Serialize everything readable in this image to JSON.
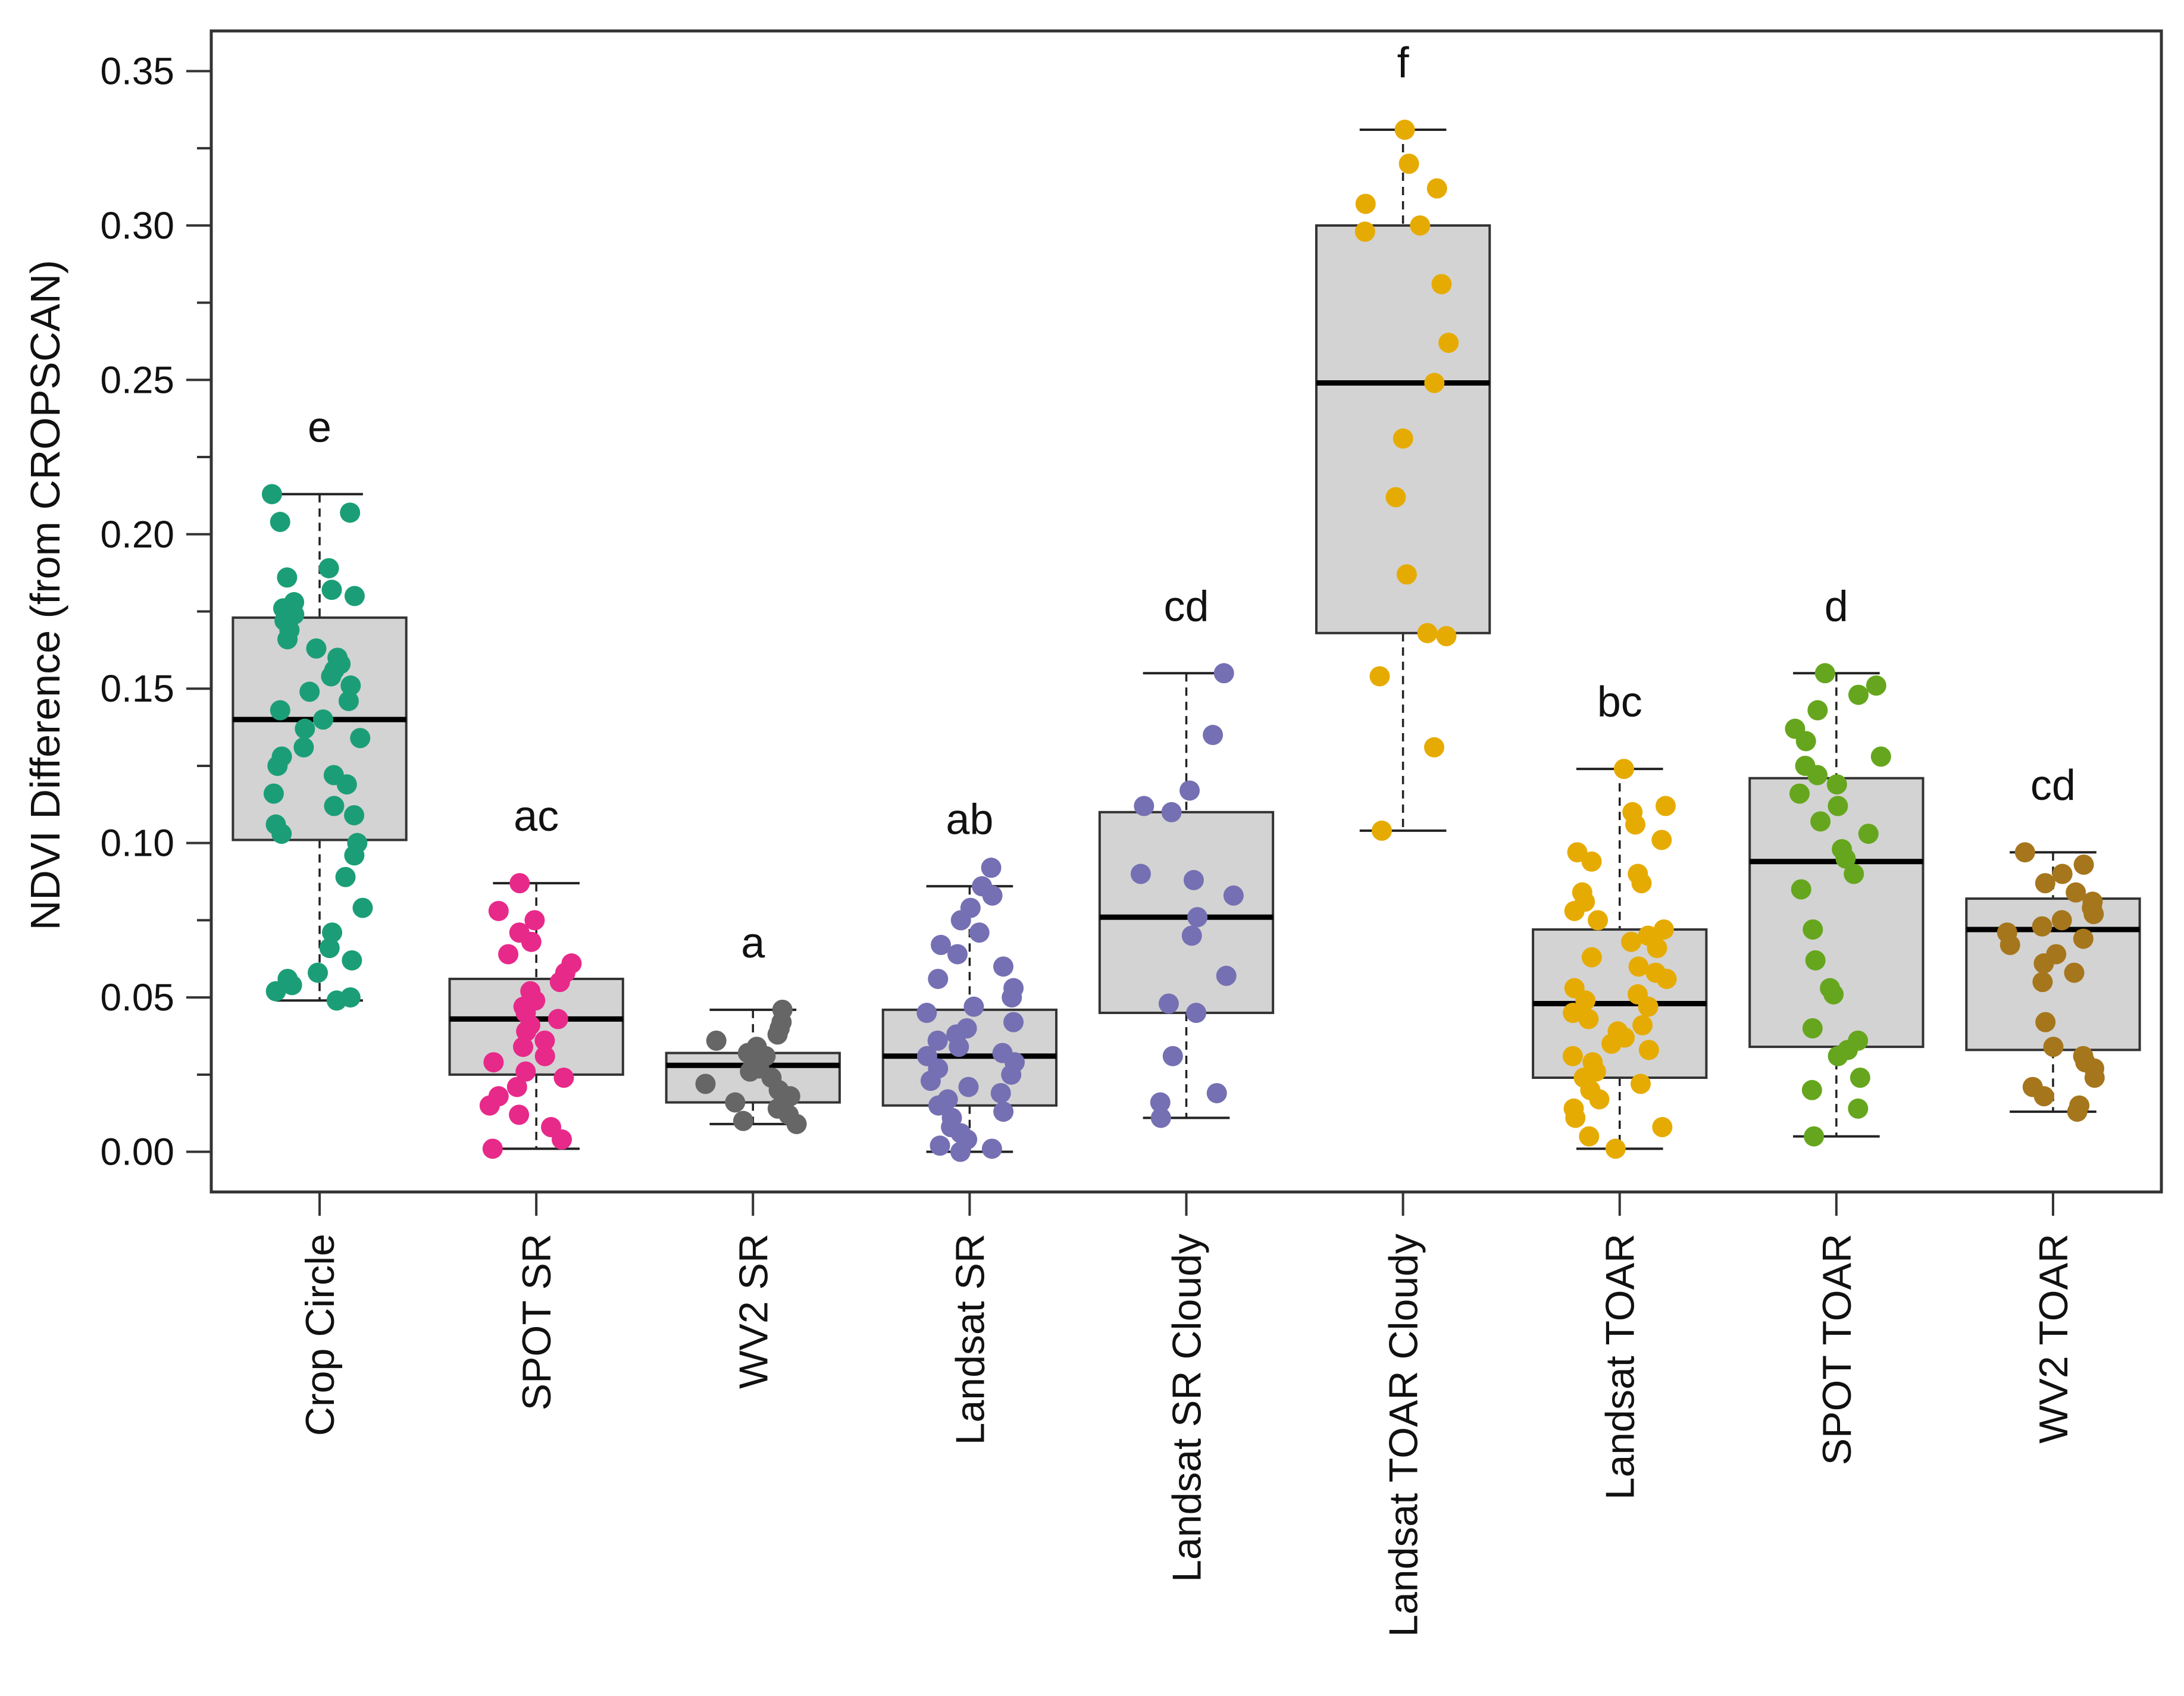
{
  "chart_data": {
    "type": "box",
    "title": "",
    "xlabel": "",
    "ylabel": "NDVI Difference (from CROPSCAN)",
    "ylim": [
      -0.013,
      0.363
    ],
    "yticks": [
      0.0,
      0.05,
      0.1,
      0.15,
      0.2,
      0.25,
      0.3,
      0.35
    ],
    "ytick_labels": [
      "0.00",
      "0.05",
      "0.10",
      "0.15",
      "0.20",
      "0.25",
      "0.30",
      "0.35"
    ],
    "box_fill": "#d3d3d3",
    "groups": [
      {
        "name": "Crop Circle",
        "letter": "e",
        "color": "#1b9e77",
        "whisker_low": 0.049,
        "q1": 0.101,
        "median": 0.14,
        "q3": 0.173,
        "whisker_high": 0.213,
        "points": [
          0.213,
          0.207,
          0.204,
          0.189,
          0.186,
          0.182,
          0.18,
          0.178,
          0.176,
          0.174,
          0.172,
          0.169,
          0.166,
          0.163,
          0.16,
          0.158,
          0.156,
          0.154,
          0.151,
          0.149,
          0.146,
          0.143,
          0.14,
          0.137,
          0.134,
          0.131,
          0.128,
          0.125,
          0.122,
          0.119,
          0.116,
          0.112,
          0.109,
          0.106,
          0.103,
          0.1,
          0.096,
          0.089,
          0.079,
          0.071,
          0.066,
          0.062,
          0.058,
          0.056,
          0.054,
          0.052,
          0.05,
          0.049
        ]
      },
      {
        "name": "SPOT SR",
        "letter": "ac",
        "color": "#e7298a",
        "whisker_low": 0.001,
        "q1": 0.025,
        "median": 0.043,
        "q3": 0.056,
        "whisker_high": 0.087,
        "points": [
          0.087,
          0.078,
          0.075,
          0.071,
          0.068,
          0.064,
          0.061,
          0.058,
          0.055,
          0.052,
          0.049,
          0.047,
          0.045,
          0.043,
          0.041,
          0.039,
          0.036,
          0.034,
          0.031,
          0.029,
          0.026,
          0.024,
          0.021,
          0.018,
          0.015,
          0.012,
          0.008,
          0.004,
          0.001
        ]
      },
      {
        "name": "WV2 SR",
        "letter": "a",
        "color": "#666666",
        "whisker_low": 0.009,
        "q1": 0.016,
        "median": 0.028,
        "q3": 0.032,
        "whisker_high": 0.046,
        "points": [
          0.046,
          0.042,
          0.04,
          0.038,
          0.036,
          0.034,
          0.032,
          0.031,
          0.029,
          0.028,
          0.027,
          0.026,
          0.024,
          0.022,
          0.02,
          0.018,
          0.016,
          0.014,
          0.012,
          0.01,
          0.009
        ]
      },
      {
        "name": "Landsat SR",
        "letter": "ab",
        "color": "#7570b3",
        "whisker_low": 0.0,
        "q1": 0.015,
        "median": 0.031,
        "q3": 0.046,
        "whisker_high": 0.086,
        "points": [
          0.092,
          0.086,
          0.083,
          0.079,
          0.075,
          0.071,
          0.067,
          0.064,
          0.06,
          0.056,
          0.053,
          0.05,
          0.047,
          0.045,
          0.042,
          0.04,
          0.038,
          0.036,
          0.034,
          0.032,
          0.031,
          0.029,
          0.027,
          0.025,
          0.023,
          0.021,
          0.019,
          0.017,
          0.015,
          0.013,
          0.011,
          0.008,
          0.006,
          0.004,
          0.002,
          0.001,
          0.0
        ]
      },
      {
        "name": "Landsat SR Cloudy",
        "letter": "cd",
        "color": "#7570b3",
        "whisker_low": 0.011,
        "q1": 0.045,
        "median": 0.076,
        "q3": 0.11,
        "whisker_high": 0.155,
        "points": [
          0.155,
          0.135,
          0.117,
          0.112,
          0.11,
          0.09,
          0.088,
          0.083,
          0.076,
          0.07,
          0.057,
          0.048,
          0.045,
          0.031,
          0.019,
          0.016,
          0.011
        ]
      },
      {
        "name": "Landsat TOAR Cloudy",
        "letter": "f",
        "color": "#e6ab02",
        "whisker_low": 0.104,
        "q1": 0.168,
        "median": 0.249,
        "q3": 0.3,
        "whisker_high": 0.331,
        "points": [
          0.331,
          0.32,
          0.312,
          0.307,
          0.3,
          0.298,
          0.281,
          0.262,
          0.249,
          0.231,
          0.212,
          0.187,
          0.168,
          0.167,
          0.154,
          0.131,
          0.104
        ]
      },
      {
        "name": "Landsat TOAR",
        "letter": "bc",
        "color": "#e6ab02",
        "whisker_low": 0.001,
        "q1": 0.024,
        "median": 0.048,
        "q3": 0.072,
        "whisker_high": 0.124,
        "points": [
          0.124,
          0.112,
          0.11,
          0.106,
          0.101,
          0.097,
          0.094,
          0.09,
          0.087,
          0.084,
          0.081,
          0.078,
          0.075,
          0.072,
          0.07,
          0.068,
          0.066,
          0.063,
          0.06,
          0.058,
          0.056,
          0.053,
          0.051,
          0.049,
          0.047,
          0.045,
          0.043,
          0.041,
          0.039,
          0.037,
          0.035,
          0.033,
          0.031,
          0.029,
          0.026,
          0.024,
          0.022,
          0.02,
          0.017,
          0.014,
          0.011,
          0.008,
          0.005,
          0.001
        ]
      },
      {
        "name": "SPOT TOAR",
        "letter": "d",
        "color": "#66a61e",
        "whisker_low": 0.005,
        "q1": 0.034,
        "median": 0.094,
        "q3": 0.121,
        "whisker_high": 0.155,
        "points": [
          0.155,
          0.151,
          0.148,
          0.143,
          0.137,
          0.133,
          0.128,
          0.125,
          0.122,
          0.119,
          0.116,
          0.112,
          0.107,
          0.103,
          0.098,
          0.095,
          0.09,
          0.085,
          0.072,
          0.062,
          0.053,
          0.051,
          0.04,
          0.036,
          0.033,
          0.031,
          0.024,
          0.02,
          0.014,
          0.005
        ]
      },
      {
        "name": "WV2 TOAR",
        "letter": "cd",
        "color": "#a6761d",
        "whisker_low": 0.013,
        "q1": 0.033,
        "median": 0.072,
        "q3": 0.082,
        "whisker_high": 0.097,
        "points": [
          0.097,
          0.093,
          0.09,
          0.087,
          0.084,
          0.081,
          0.079,
          0.077,
          0.075,
          0.073,
          0.071,
          0.069,
          0.067,
          0.064,
          0.061,
          0.058,
          0.055,
          0.042,
          0.034,
          0.031,
          0.029,
          0.027,
          0.024,
          0.021,
          0.018,
          0.015,
          0.013
        ]
      }
    ]
  }
}
